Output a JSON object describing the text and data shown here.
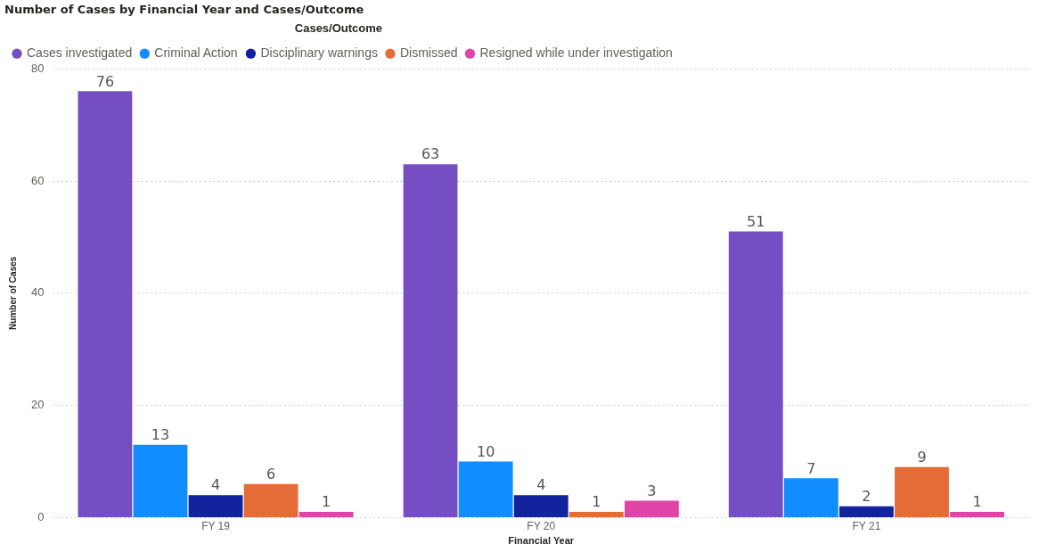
{
  "chart_data": {
    "type": "bar",
    "title": "Number of Cases by Financial Year and Cases/Outcome",
    "xlabel": "Financial Year",
    "ylabel": "Number of Cases",
    "legend_title": "Cases/Outcome",
    "categories": [
      "FY 19",
      "FY 20",
      "FY 21"
    ],
    "series": [
      {
        "name": "Cases investigated",
        "color": "#744ec2",
        "values": [
          76,
          63,
          51
        ]
      },
      {
        "name": "Criminal Action",
        "color": "#118dff",
        "values": [
          13,
          10,
          7
        ]
      },
      {
        "name": "Disciplinary warnings",
        "color": "#12239e",
        "values": [
          4,
          4,
          2
        ]
      },
      {
        "name": "Dismissed",
        "color": "#e66c37",
        "values": [
          6,
          1,
          9
        ]
      },
      {
        "name": "Resigned while under investigation",
        "color": "#e044a7",
        "values": [
          1,
          3,
          1
        ]
      }
    ],
    "ylim": [
      0,
      80
    ],
    "yticks": [
      0,
      20,
      40,
      60,
      80
    ],
    "grid": "y",
    "legend": "top left",
    "data_labels": true
  }
}
